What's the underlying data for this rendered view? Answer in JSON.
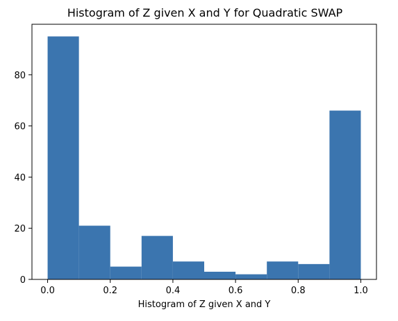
{
  "chart_data": {
    "type": "bar",
    "title": "Histogram of Z given X and Y for Quadratic SWAP",
    "xlabel": "Histogram of Z given X and Y",
    "ylabel": "",
    "bin_edges": [
      0.0,
      0.1,
      0.2,
      0.3,
      0.4,
      0.5,
      0.6,
      0.7,
      0.8,
      0.9,
      1.0
    ],
    "values": [
      95,
      21,
      5,
      17,
      7,
      3,
      2,
      7,
      6,
      66
    ],
    "xlim": [
      -0.05,
      1.05
    ],
    "ylim": [
      0,
      99.75
    ],
    "xticks": [
      0.0,
      0.2,
      0.4,
      0.6,
      0.8,
      1.0
    ],
    "xtick_labels": [
      "0.0",
      "0.2",
      "0.4",
      "0.6",
      "0.8",
      "1.0"
    ],
    "yticks": [
      0,
      20,
      40,
      60,
      80
    ],
    "ytick_labels": [
      "0",
      "20",
      "40",
      "60",
      "80"
    ],
    "bar_color": "#3b75af",
    "grid": false,
    "legend": "none"
  }
}
